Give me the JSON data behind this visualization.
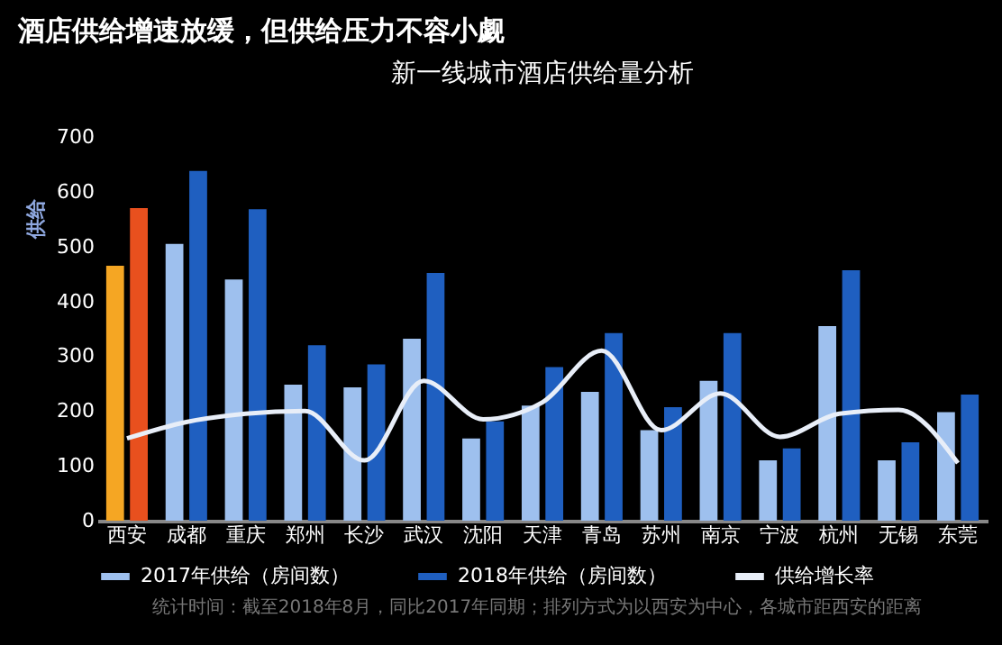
{
  "chart_data": {
    "type": "bar",
    "title": "酒店供给增速放缓，但供给压力不容小觑",
    "subtitle": "新一线城市酒店供给量分析",
    "ylabel": "供给",
    "categories": [
      "西安",
      "成都",
      "重庆",
      "郑州",
      "长沙",
      "武汉",
      "沈阳",
      "天津",
      "青岛",
      "苏州",
      "南京",
      "宁波",
      "杭州",
      "无锡",
      "东莞"
    ],
    "series": [
      {
        "name": "2017年供给（房间数）",
        "color": "#9ec0ee",
        "colors": [
          "#f5a623",
          "#9ec0ee",
          "#9ec0ee",
          "#9ec0ee",
          "#9ec0ee",
          "#9ec0ee",
          "#9ec0ee",
          "#9ec0ee",
          "#9ec0ee",
          "#9ec0ee",
          "#9ec0ee",
          "#9ec0ee",
          "#9ec0ee",
          "#9ec0ee",
          "#9ec0ee"
        ],
        "values": [
          465,
          505,
          440,
          248,
          243,
          332,
          150,
          210,
          235,
          165,
          255,
          110,
          355,
          110,
          198
        ]
      },
      {
        "name": "2018年供给（房间数）",
        "color": "#1f5fc0",
        "colors": [
          "#e8501e",
          "#1f5fc0",
          "#1f5fc0",
          "#1f5fc0",
          "#1f5fc0",
          "#1f5fc0",
          "#1f5fc0",
          "#1f5fc0",
          "#1f5fc0",
          "#1f5fc0",
          "#1f5fc0",
          "#1f5fc0",
          "#1f5fc0",
          "#1f5fc0",
          "#1f5fc0"
        ],
        "values": [
          570,
          638,
          568,
          320,
          285,
          452,
          181,
          280,
          342,
          207,
          342,
          132,
          457,
          143,
          230
        ]
      },
      {
        "name": "供给增长率",
        "type": "line",
        "color": "#e8eef8",
        "values": [
          150,
          180,
          195,
          200,
          110,
          255,
          185,
          216,
          310,
          165,
          232,
          153,
          195,
          202,
          105
        ]
      }
    ],
    "ylim": [
      0,
      700
    ],
    "yticks": [
      0,
      100,
      200,
      300,
      400,
      500,
      600,
      700
    ],
    "grid": false,
    "legend": "bottom",
    "marker": "none",
    "line_style": "solid",
    "annotations": [
      "统计时间：截至2018年8月，同比2017年同期；排列方式为以西安为中心，各城市距西安的距离"
    ]
  }
}
